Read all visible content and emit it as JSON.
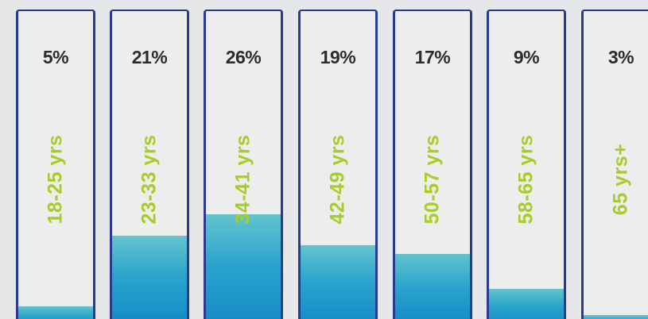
{
  "chart_data": {
    "type": "bar",
    "categories": [
      "18-25 yrs",
      "23-33 yrs",
      "34-41 yrs",
      "42-49  yrs",
      "50-57 yrs",
      "58-65 yrs",
      "65 yrs+"
    ],
    "values": [
      5,
      21,
      26,
      19,
      17,
      9,
      3
    ],
    "value_labels": [
      "5%",
      "21%",
      "26%",
      "19%",
      "17%",
      "9%",
      "3%"
    ],
    "unit": "%",
    "ylim": [
      0,
      100
    ],
    "colors": {
      "bar_border": "#2b3a8f",
      "fill_top": "#63c4cd",
      "fill_bottom": "#1388c6",
      "category_label": "#a8cc2c",
      "value_label": "#2c2c2c",
      "background": "#e6e7e9"
    }
  }
}
